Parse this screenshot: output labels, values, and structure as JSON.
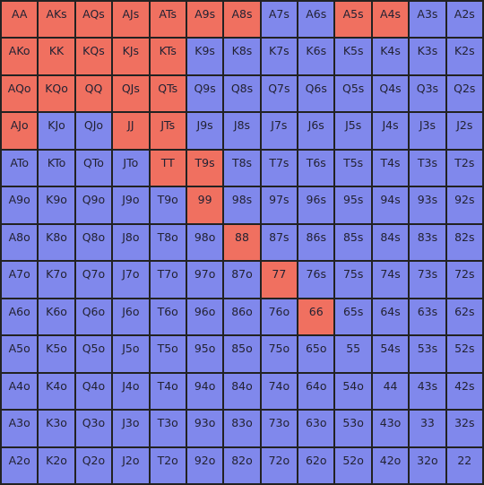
{
  "colors": {
    "raise": "#f07060",
    "fold": "#8088ec",
    "border": "#222222"
  },
  "rows": [
    [
      [
        "AA",
        "raise"
      ],
      [
        "AKs",
        "raise"
      ],
      [
        "AQs",
        "raise"
      ],
      [
        "AJs",
        "raise"
      ],
      [
        "ATs",
        "raise"
      ],
      [
        "A9s",
        "raise"
      ],
      [
        "A8s",
        "raise"
      ],
      [
        "A7s",
        "fold"
      ],
      [
        "A6s",
        "fold"
      ],
      [
        "A5s",
        "raise"
      ],
      [
        "A4s",
        "raise"
      ],
      [
        "A3s",
        "fold"
      ],
      [
        "A2s",
        "fold"
      ]
    ],
    [
      [
        "AKo",
        "raise"
      ],
      [
        "KK",
        "raise"
      ],
      [
        "KQs",
        "raise"
      ],
      [
        "KJs",
        "raise"
      ],
      [
        "KTs",
        "raise"
      ],
      [
        "K9s",
        "fold"
      ],
      [
        "K8s",
        "fold"
      ],
      [
        "K7s",
        "fold"
      ],
      [
        "K6s",
        "fold"
      ],
      [
        "K5s",
        "fold"
      ],
      [
        "K4s",
        "fold"
      ],
      [
        "K3s",
        "fold"
      ],
      [
        "K2s",
        "fold"
      ]
    ],
    [
      [
        "AQo",
        "raise"
      ],
      [
        "KQo",
        "raise"
      ],
      [
        "QQ",
        "raise"
      ],
      [
        "QJs",
        "raise"
      ],
      [
        "QTs",
        "raise"
      ],
      [
        "Q9s",
        "fold"
      ],
      [
        "Q8s",
        "fold"
      ],
      [
        "Q7s",
        "fold"
      ],
      [
        "Q6s",
        "fold"
      ],
      [
        "Q5s",
        "fold"
      ],
      [
        "Q4s",
        "fold"
      ],
      [
        "Q3s",
        "fold"
      ],
      [
        "Q2s",
        "fold"
      ]
    ],
    [
      [
        "AJo",
        "raise"
      ],
      [
        "KJo",
        "fold"
      ],
      [
        "QJo",
        "fold"
      ],
      [
        "JJ",
        "raise"
      ],
      [
        "JTs",
        "raise"
      ],
      [
        "J9s",
        "fold"
      ],
      [
        "J8s",
        "fold"
      ],
      [
        "J7s",
        "fold"
      ],
      [
        "J6s",
        "fold"
      ],
      [
        "J5s",
        "fold"
      ],
      [
        "J4s",
        "fold"
      ],
      [
        "J3s",
        "fold"
      ],
      [
        "J2s",
        "fold"
      ]
    ],
    [
      [
        "ATo",
        "fold"
      ],
      [
        "KTo",
        "fold"
      ],
      [
        "QTo",
        "fold"
      ],
      [
        "JTo",
        "fold"
      ],
      [
        "TT",
        "raise"
      ],
      [
        "T9s",
        "raise"
      ],
      [
        "T8s",
        "fold"
      ],
      [
        "T7s",
        "fold"
      ],
      [
        "T6s",
        "fold"
      ],
      [
        "T5s",
        "fold"
      ],
      [
        "T4s",
        "fold"
      ],
      [
        "T3s",
        "fold"
      ],
      [
        "T2s",
        "fold"
      ]
    ],
    [
      [
        "A9o",
        "fold"
      ],
      [
        "K9o",
        "fold"
      ],
      [
        "Q9o",
        "fold"
      ],
      [
        "J9o",
        "fold"
      ],
      [
        "T9o",
        "fold"
      ],
      [
        "99",
        "raise"
      ],
      [
        "98s",
        "fold"
      ],
      [
        "97s",
        "fold"
      ],
      [
        "96s",
        "fold"
      ],
      [
        "95s",
        "fold"
      ],
      [
        "94s",
        "fold"
      ],
      [
        "93s",
        "fold"
      ],
      [
        "92s",
        "fold"
      ]
    ],
    [
      [
        "A8o",
        "fold"
      ],
      [
        "K8o",
        "fold"
      ],
      [
        "Q8o",
        "fold"
      ],
      [
        "J8o",
        "fold"
      ],
      [
        "T8o",
        "fold"
      ],
      [
        "98o",
        "fold"
      ],
      [
        "88",
        "raise"
      ],
      [
        "87s",
        "fold"
      ],
      [
        "86s",
        "fold"
      ],
      [
        "85s",
        "fold"
      ],
      [
        "84s",
        "fold"
      ],
      [
        "83s",
        "fold"
      ],
      [
        "82s",
        "fold"
      ]
    ],
    [
      [
        "A7o",
        "fold"
      ],
      [
        "K7o",
        "fold"
      ],
      [
        "Q7o",
        "fold"
      ],
      [
        "J7o",
        "fold"
      ],
      [
        "T7o",
        "fold"
      ],
      [
        "97o",
        "fold"
      ],
      [
        "87o",
        "fold"
      ],
      [
        "77",
        "raise"
      ],
      [
        "76s",
        "fold"
      ],
      [
        "75s",
        "fold"
      ],
      [
        "74s",
        "fold"
      ],
      [
        "73s",
        "fold"
      ],
      [
        "72s",
        "fold"
      ]
    ],
    [
      [
        "A6o",
        "fold"
      ],
      [
        "K6o",
        "fold"
      ],
      [
        "Q6o",
        "fold"
      ],
      [
        "J6o",
        "fold"
      ],
      [
        "T6o",
        "fold"
      ],
      [
        "96o",
        "fold"
      ],
      [
        "86o",
        "fold"
      ],
      [
        "76o",
        "fold"
      ],
      [
        "66",
        "raise"
      ],
      [
        "65s",
        "fold"
      ],
      [
        "64s",
        "fold"
      ],
      [
        "63s",
        "fold"
      ],
      [
        "62s",
        "fold"
      ]
    ],
    [
      [
        "A5o",
        "fold"
      ],
      [
        "K5o",
        "fold"
      ],
      [
        "Q5o",
        "fold"
      ],
      [
        "J5o",
        "fold"
      ],
      [
        "T5o",
        "fold"
      ],
      [
        "95o",
        "fold"
      ],
      [
        "85o",
        "fold"
      ],
      [
        "75o",
        "fold"
      ],
      [
        "65o",
        "fold"
      ],
      [
        "55",
        "fold"
      ],
      [
        "54s",
        "fold"
      ],
      [
        "53s",
        "fold"
      ],
      [
        "52s",
        "fold"
      ]
    ],
    [
      [
        "A4o",
        "fold"
      ],
      [
        "K4o",
        "fold"
      ],
      [
        "Q4o",
        "fold"
      ],
      [
        "J4o",
        "fold"
      ],
      [
        "T4o",
        "fold"
      ],
      [
        "94o",
        "fold"
      ],
      [
        "84o",
        "fold"
      ],
      [
        "74o",
        "fold"
      ],
      [
        "64o",
        "fold"
      ],
      [
        "54o",
        "fold"
      ],
      [
        "44",
        "fold"
      ],
      [
        "43s",
        "fold"
      ],
      [
        "42s",
        "fold"
      ]
    ],
    [
      [
        "A3o",
        "fold"
      ],
      [
        "K3o",
        "fold"
      ],
      [
        "Q3o",
        "fold"
      ],
      [
        "J3o",
        "fold"
      ],
      [
        "T3o",
        "fold"
      ],
      [
        "93o",
        "fold"
      ],
      [
        "83o",
        "fold"
      ],
      [
        "73o",
        "fold"
      ],
      [
        "63o",
        "fold"
      ],
      [
        "53o",
        "fold"
      ],
      [
        "43o",
        "fold"
      ],
      [
        "33",
        "fold"
      ],
      [
        "32s",
        "fold"
      ]
    ],
    [
      [
        "A2o",
        "fold"
      ],
      [
        "K2o",
        "fold"
      ],
      [
        "Q2o",
        "fold"
      ],
      [
        "J2o",
        "fold"
      ],
      [
        "T2o",
        "fold"
      ],
      [
        "92o",
        "fold"
      ],
      [
        "82o",
        "fold"
      ],
      [
        "72o",
        "fold"
      ],
      [
        "62o",
        "fold"
      ],
      [
        "52o",
        "fold"
      ],
      [
        "42o",
        "fold"
      ],
      [
        "32o",
        "fold"
      ],
      [
        "22",
        "fold"
      ]
    ]
  ]
}
